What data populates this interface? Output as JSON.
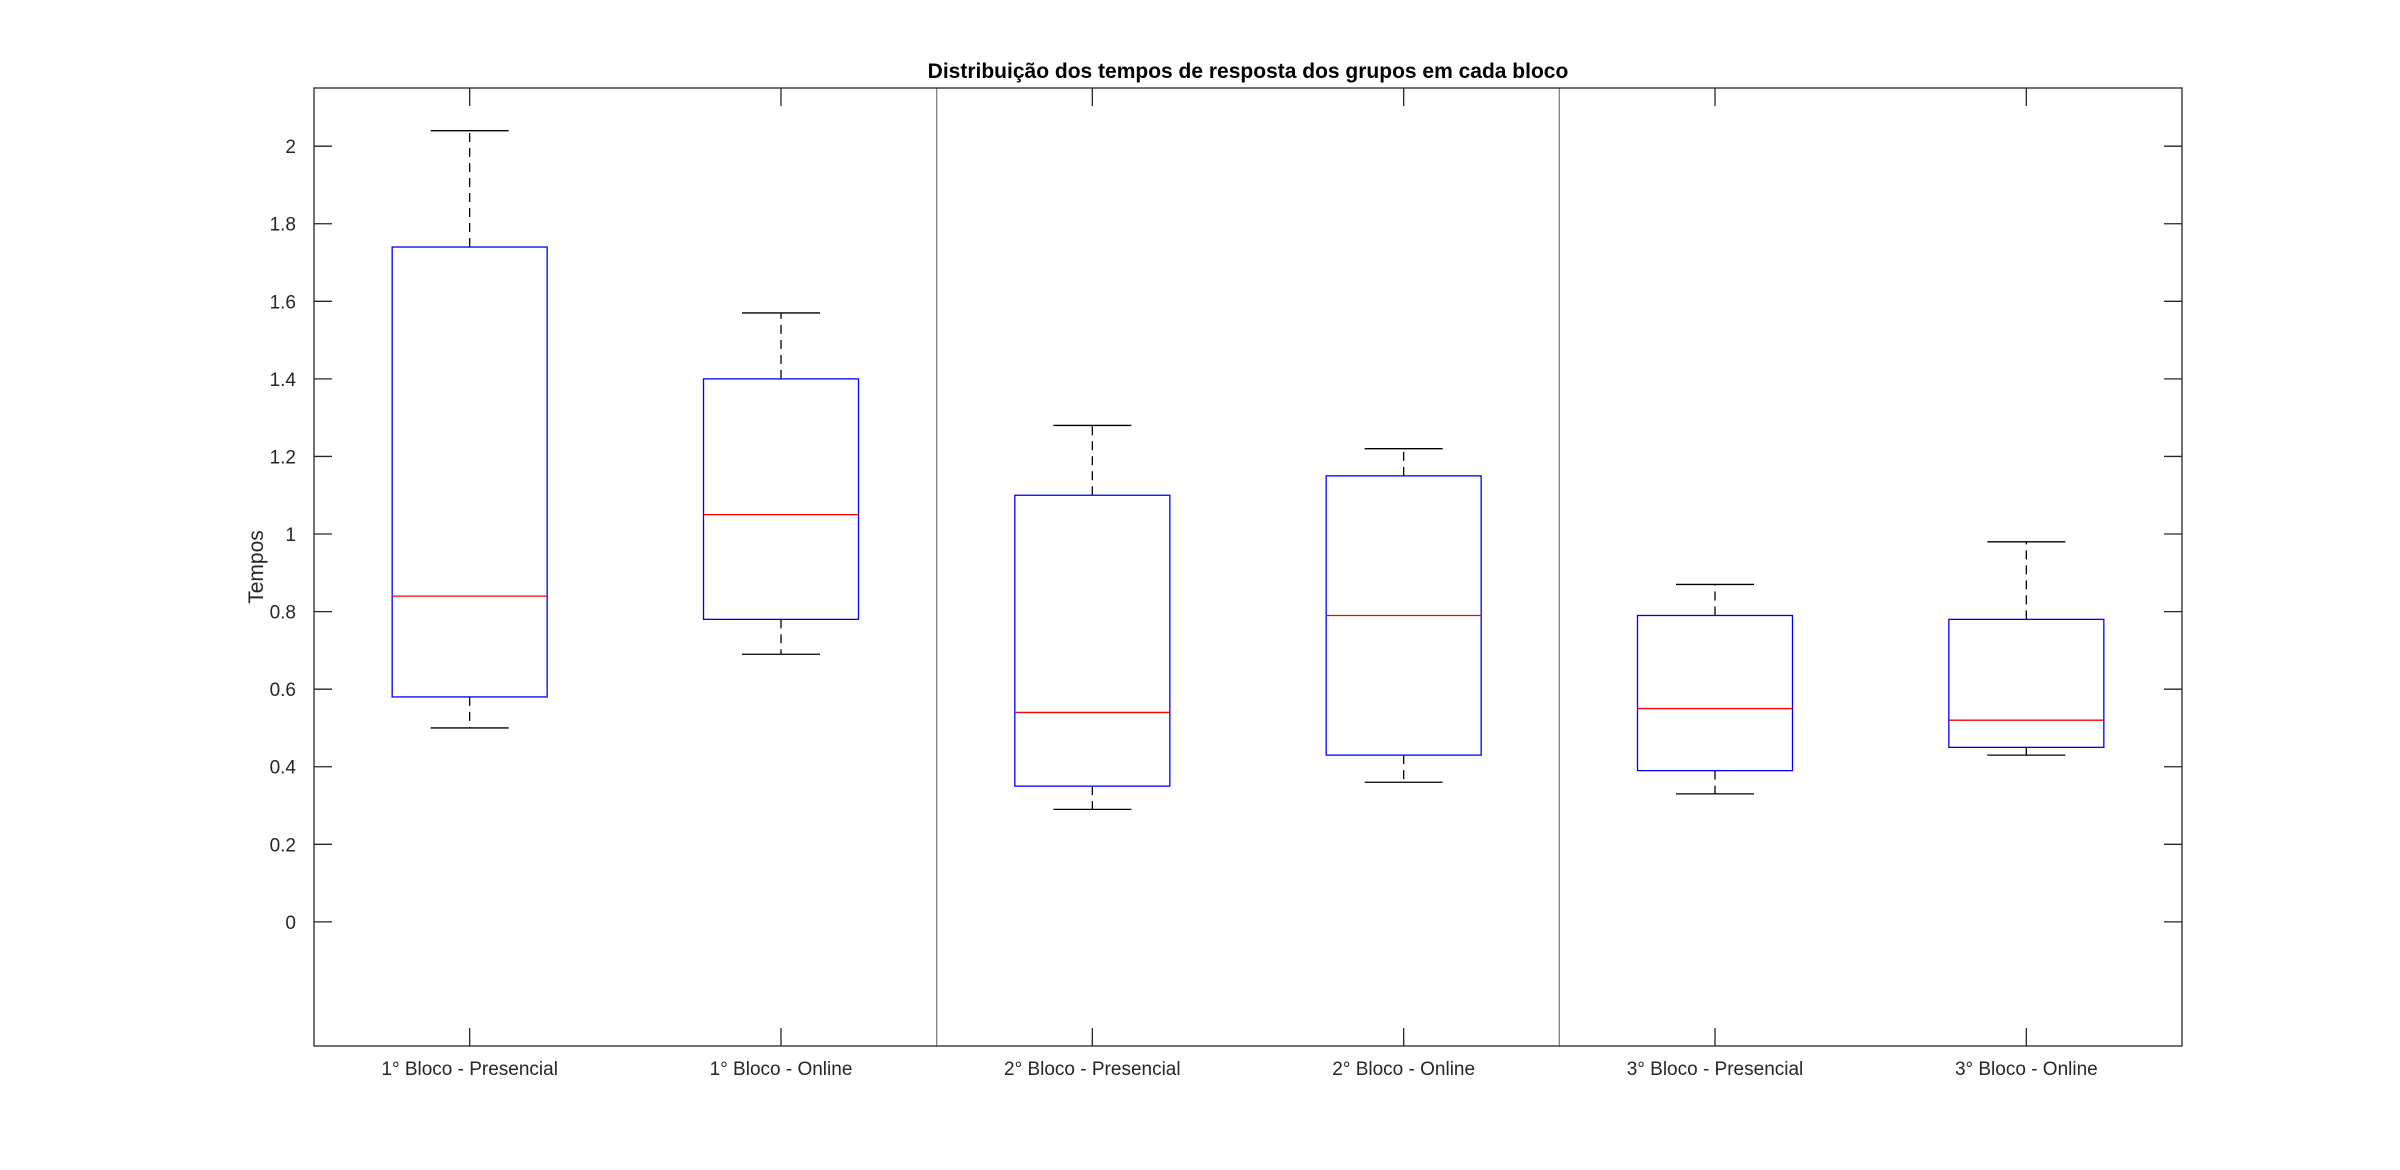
{
  "chart_data": {
    "type": "boxplot",
    "title": "Distribuição dos tempos de resposta dos grupos em cada bloco",
    "xlabel": "",
    "ylabel": "Tempos",
    "ylim": [
      -0.32,
      2.15
    ],
    "yticks": [
      0,
      0.2,
      0.4,
      0.6,
      0.8,
      1,
      1.2,
      1.4,
      1.6,
      1.8,
      2
    ],
    "ytick_labels": [
      "0",
      "0.2",
      "0.4",
      "0.6",
      "0.8",
      "1",
      "1.2",
      "1.4",
      "1.6",
      "1.8",
      "2"
    ],
    "grid": false,
    "separators_after": [
      2,
      4
    ],
    "categories": [
      "1° Bloco - Presencial",
      "1° Bloco - Online",
      "2° Bloco - Presencial",
      "2° Bloco - Online",
      "3° Bloco - Presencial",
      "3° Bloco - Online"
    ],
    "boxes": [
      {
        "label": "1° Bloco - Presencial",
        "whisker_low": 0.5,
        "q1": 0.58,
        "median": 0.84,
        "q3": 1.74,
        "whisker_high": 2.04
      },
      {
        "label": "1° Bloco - Online",
        "whisker_low": 0.69,
        "q1": 0.78,
        "median": 1.05,
        "q3": 1.4,
        "whisker_high": 1.57
      },
      {
        "label": "2° Bloco - Presencial",
        "whisker_low": 0.29,
        "q1": 0.35,
        "median": 0.54,
        "q3": 1.1,
        "whisker_high": 1.28
      },
      {
        "label": "2° Bloco - Online",
        "whisker_low": 0.36,
        "q1": 0.43,
        "median": 0.79,
        "q3": 1.15,
        "whisker_high": 1.22
      },
      {
        "label": "3° Bloco - Presencial",
        "whisker_low": 0.33,
        "q1": 0.39,
        "median": 0.55,
        "q3": 0.79,
        "whisker_high": 0.87
      },
      {
        "label": "3° Bloco - Online",
        "whisker_low": 0.43,
        "q1": 0.45,
        "median": 0.52,
        "q3": 0.78,
        "whisker_high": 0.98
      }
    ],
    "colors": {
      "box": "#0000ff",
      "median": "#ff0000",
      "whisker": "#000000",
      "axes": "#262626",
      "separator": "#808080"
    }
  }
}
